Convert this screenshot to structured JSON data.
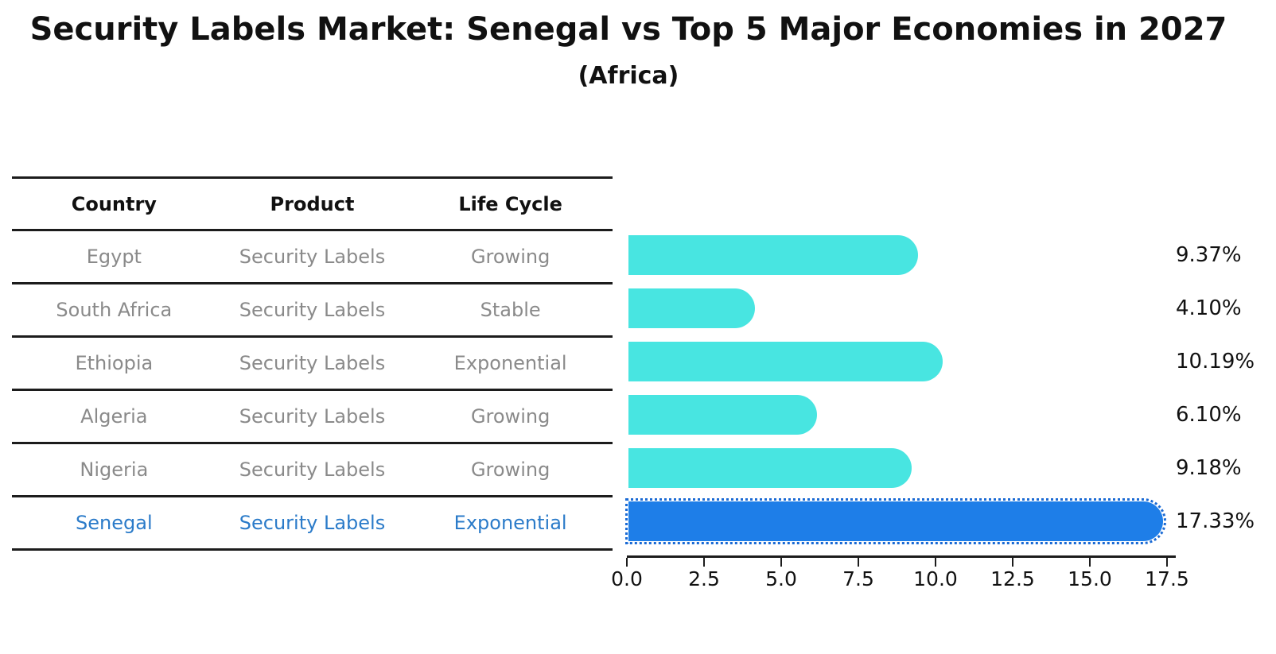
{
  "title": "Security Labels Market: Senegal vs Top 5 Major Economies in 2027",
  "subtitle": "(Africa)",
  "table": {
    "headers": [
      "Country",
      "Product",
      "Life Cycle"
    ],
    "rows": [
      {
        "country": "Egypt",
        "product": "Security Labels",
        "life_cycle": "Growing",
        "highlight": false
      },
      {
        "country": "South Africa",
        "product": "Security Labels",
        "life_cycle": "Stable",
        "highlight": false
      },
      {
        "country": "Ethiopia",
        "product": "Security Labels",
        "life_cycle": "Exponential",
        "highlight": false
      },
      {
        "country": "Algeria",
        "product": "Security Labels",
        "life_cycle": "Growing",
        "highlight": false
      },
      {
        "country": "Nigeria",
        "product": "Security Labels",
        "life_cycle": "Growing",
        "highlight": false
      },
      {
        "country": "Senegal",
        "product": "Security Labels",
        "life_cycle": "Exponential",
        "highlight": true
      }
    ]
  },
  "chart_data": {
    "type": "bar",
    "orientation": "horizontal",
    "title": "Security Labels Market: Senegal vs Top 5 Major Economies in 2027 (Africa)",
    "categories": [
      "Egypt",
      "South Africa",
      "Ethiopia",
      "Algeria",
      "Nigeria",
      "Senegal"
    ],
    "values": [
      9.37,
      4.1,
      10.19,
      6.1,
      9.18,
      17.33
    ],
    "value_labels": [
      "9.37%",
      "4.10%",
      "10.19%",
      "6.10%",
      "9.18%",
      "17.33%"
    ],
    "highlight_index": 5,
    "x_tick_labels": [
      "0.0",
      "2.5",
      "5.0",
      "7.5",
      "10.0",
      "12.5",
      "15.0",
      "17.5"
    ],
    "x_tick_values": [
      0.0,
      2.5,
      5.0,
      7.5,
      10.0,
      12.5,
      15.0,
      17.5
    ],
    "xlim": [
      0,
      17.5
    ],
    "grid": false,
    "legend": false
  },
  "colors": {
    "bar": "#48E5E1",
    "highlight_bar": "#1E7EE8",
    "highlight_edge": "#1A6AD4",
    "highlight_text": "#2B7BC9",
    "cell_text": "#8A8A8A",
    "header_text": "#111111",
    "line": "#1C1C1C"
  }
}
